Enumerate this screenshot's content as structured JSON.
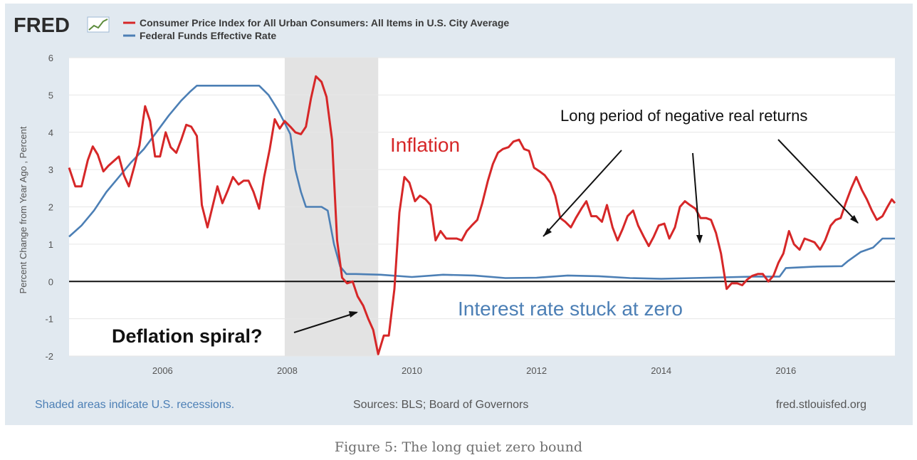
{
  "logo": {
    "text": "FRED"
  },
  "legend": [
    {
      "name": "Consumer Price Index for All Urban Consumers: All Items in U.S. City Average",
      "color": "#d62728"
    },
    {
      "name": "Federal Funds Effective Rate",
      "color": "#4c7fb5"
    }
  ],
  "footer": {
    "recession_note": "Shaded areas indicate U.S. recessions.",
    "sources": "Sources: BLS; Board of Governors",
    "site": "fred.stlouisfed.org"
  },
  "caption": "Figure 5: The long quiet zero bound",
  "annotations": {
    "inflation": "Inflation",
    "negative_returns": "Long period of negative real returns",
    "deflation": "Deflation spiral?",
    "interest": "Interest rate stuck at zero"
  },
  "colors": {
    "cpi": "#d62728",
    "fedfunds": "#4c7fb5",
    "recession": "#e3e3e3",
    "panel": "#e1e9f0",
    "footer_link": "#4c7fb5"
  },
  "chart_data": {
    "type": "line",
    "ylabel": "Percent Change from Year Ago , Percent",
    "xlim": [
      2004.5,
      2017.75
    ],
    "ylim": [
      -2,
      6
    ],
    "y_ticks": [
      -2,
      -1,
      0,
      1,
      2,
      3,
      4,
      5,
      6
    ],
    "x_ticks": [
      2006,
      2008,
      2010,
      2012,
      2014,
      2016
    ],
    "grid": true,
    "legend_position": "top-left",
    "recession": {
      "start": 2007.96,
      "end": 2009.46
    },
    "zero_line": 0,
    "series": [
      {
        "name": "Consumer Price Index for All Urban Consumers: All Items in U.S. City Average",
        "points": [
          [
            2004.5,
            3.05
          ],
          [
            2004.6,
            2.55
          ],
          [
            2004.7,
            2.55
          ],
          [
            2004.8,
            3.25
          ],
          [
            2004.88,
            3.62
          ],
          [
            2004.96,
            3.4
          ],
          [
            2005.05,
            2.95
          ],
          [
            2005.13,
            3.1
          ],
          [
            2005.3,
            3.35
          ],
          [
            2005.38,
            2.85
          ],
          [
            2005.46,
            2.55
          ],
          [
            2005.55,
            3.1
          ],
          [
            2005.63,
            3.65
          ],
          [
            2005.72,
            4.7
          ],
          [
            2005.8,
            4.3
          ],
          [
            2005.88,
            3.35
          ],
          [
            2005.96,
            3.35
          ],
          [
            2006.05,
            4.0
          ],
          [
            2006.13,
            3.6
          ],
          [
            2006.22,
            3.45
          ],
          [
            2006.3,
            3.8
          ],
          [
            2006.38,
            4.2
          ],
          [
            2006.46,
            4.15
          ],
          [
            2006.55,
            3.9
          ],
          [
            2006.63,
            2.05
          ],
          [
            2006.72,
            1.45
          ],
          [
            2006.8,
            2.0
          ],
          [
            2006.88,
            2.55
          ],
          [
            2006.96,
            2.1
          ],
          [
            2007.05,
            2.45
          ],
          [
            2007.13,
            2.8
          ],
          [
            2007.22,
            2.6
          ],
          [
            2007.3,
            2.7
          ],
          [
            2007.38,
            2.7
          ],
          [
            2007.46,
            2.4
          ],
          [
            2007.55,
            1.95
          ],
          [
            2007.63,
            2.8
          ],
          [
            2007.72,
            3.55
          ],
          [
            2007.8,
            4.35
          ],
          [
            2007.88,
            4.1
          ],
          [
            2007.96,
            4.3
          ],
          [
            2008.05,
            4.15
          ],
          [
            2008.13,
            4.0
          ],
          [
            2008.22,
            3.95
          ],
          [
            2008.3,
            4.15
          ],
          [
            2008.38,
            4.9
          ],
          [
            2008.46,
            5.5
          ],
          [
            2008.55,
            5.35
          ],
          [
            2008.63,
            4.95
          ],
          [
            2008.72,
            3.8
          ],
          [
            2008.8,
            1.1
          ],
          [
            2008.88,
            0.1
          ],
          [
            2008.96,
            -0.05
          ],
          [
            2009.05,
            0.0
          ],
          [
            2009.13,
            -0.4
          ],
          [
            2009.22,
            -0.65
          ],
          [
            2009.3,
            -1.0
          ],
          [
            2009.38,
            -1.3
          ],
          [
            2009.46,
            -1.95
          ],
          [
            2009.55,
            -1.45
          ],
          [
            2009.63,
            -1.45
          ],
          [
            2009.72,
            -0.2
          ],
          [
            2009.8,
            1.85
          ],
          [
            2009.88,
            2.8
          ],
          [
            2009.96,
            2.65
          ],
          [
            2010.05,
            2.15
          ],
          [
            2010.13,
            2.3
          ],
          [
            2010.22,
            2.2
          ],
          [
            2010.3,
            2.05
          ],
          [
            2010.38,
            1.1
          ],
          [
            2010.46,
            1.35
          ],
          [
            2010.55,
            1.15
          ],
          [
            2010.63,
            1.15
          ],
          [
            2010.72,
            1.15
          ],
          [
            2010.8,
            1.1
          ],
          [
            2010.88,
            1.35
          ],
          [
            2010.96,
            1.5
          ],
          [
            2011.05,
            1.65
          ],
          [
            2011.13,
            2.1
          ],
          [
            2011.22,
            2.7
          ],
          [
            2011.3,
            3.15
          ],
          [
            2011.38,
            3.45
          ],
          [
            2011.46,
            3.55
          ],
          [
            2011.55,
            3.6
          ],
          [
            2011.63,
            3.75
          ],
          [
            2011.72,
            3.8
          ],
          [
            2011.8,
            3.55
          ],
          [
            2011.88,
            3.5
          ],
          [
            2011.96,
            3.05
          ],
          [
            2012.05,
            2.95
          ],
          [
            2012.13,
            2.85
          ],
          [
            2012.22,
            2.65
          ],
          [
            2012.3,
            2.3
          ],
          [
            2012.38,
            1.7
          ],
          [
            2012.46,
            1.6
          ],
          [
            2012.55,
            1.45
          ],
          [
            2012.63,
            1.7
          ],
          [
            2012.72,
            1.95
          ],
          [
            2012.8,
            2.15
          ],
          [
            2012.88,
            1.75
          ],
          [
            2012.96,
            1.75
          ],
          [
            2013.05,
            1.6
          ],
          [
            2013.13,
            2.05
          ],
          [
            2013.22,
            1.45
          ],
          [
            2013.3,
            1.1
          ],
          [
            2013.38,
            1.4
          ],
          [
            2013.46,
            1.75
          ],
          [
            2013.55,
            1.9
          ],
          [
            2013.63,
            1.5
          ],
          [
            2013.72,
            1.2
          ],
          [
            2013.8,
            0.95
          ],
          [
            2013.88,
            1.2
          ],
          [
            2013.96,
            1.5
          ],
          [
            2014.05,
            1.55
          ],
          [
            2014.13,
            1.15
          ],
          [
            2014.22,
            1.45
          ],
          [
            2014.3,
            2.0
          ],
          [
            2014.38,
            2.15
          ],
          [
            2014.46,
            2.05
          ],
          [
            2014.55,
            1.95
          ],
          [
            2014.63,
            1.7
          ],
          [
            2014.72,
            1.7
          ],
          [
            2014.8,
            1.65
          ],
          [
            2014.88,
            1.3
          ],
          [
            2014.96,
            0.75
          ],
          [
            2015.05,
            -0.2
          ],
          [
            2015.13,
            -0.05
          ],
          [
            2015.22,
            -0.05
          ],
          [
            2015.3,
            -0.1
          ],
          [
            2015.38,
            0.05
          ],
          [
            2015.46,
            0.15
          ],
          [
            2015.55,
            0.2
          ],
          [
            2015.63,
            0.2
          ],
          [
            2015.72,
            0.0
          ],
          [
            2015.8,
            0.15
          ],
          [
            2015.88,
            0.5
          ],
          [
            2015.96,
            0.75
          ],
          [
            2016.05,
            1.35
          ],
          [
            2016.13,
            1.0
          ],
          [
            2016.22,
            0.85
          ],
          [
            2016.3,
            1.15
          ],
          [
            2016.38,
            1.1
          ],
          [
            2016.46,
            1.05
          ],
          [
            2016.55,
            0.85
          ],
          [
            2016.63,
            1.1
          ],
          [
            2016.72,
            1.5
          ],
          [
            2016.8,
            1.65
          ],
          [
            2016.88,
            1.7
          ],
          [
            2016.96,
            2.1
          ],
          [
            2017.05,
            2.5
          ],
          [
            2017.13,
            2.8
          ],
          [
            2017.22,
            2.45
          ],
          [
            2017.3,
            2.2
          ],
          [
            2017.38,
            1.9
          ],
          [
            2017.46,
            1.65
          ],
          [
            2017.55,
            1.75
          ],
          [
            2017.63,
            2.0
          ],
          [
            2017.7,
            2.2
          ],
          [
            2017.75,
            2.1
          ]
        ]
      },
      {
        "name": "Federal Funds Effective Rate",
        "points": [
          [
            2004.5,
            1.2
          ],
          [
            2004.7,
            1.5
          ],
          [
            2004.9,
            1.9
          ],
          [
            2005.1,
            2.4
          ],
          [
            2005.3,
            2.8
          ],
          [
            2005.5,
            3.2
          ],
          [
            2005.7,
            3.55
          ],
          [
            2005.9,
            4.0
          ],
          [
            2006.1,
            4.45
          ],
          [
            2006.3,
            4.85
          ],
          [
            2006.45,
            5.1
          ],
          [
            2006.55,
            5.25
          ],
          [
            2006.8,
            5.25
          ],
          [
            2007.0,
            5.25
          ],
          [
            2007.3,
            5.25
          ],
          [
            2007.55,
            5.25
          ],
          [
            2007.7,
            5.0
          ],
          [
            2007.85,
            4.6
          ],
          [
            2007.96,
            4.25
          ],
          [
            2008.05,
            3.95
          ],
          [
            2008.13,
            3.0
          ],
          [
            2008.22,
            2.4
          ],
          [
            2008.3,
            2.0
          ],
          [
            2008.55,
            2.0
          ],
          [
            2008.65,
            1.9
          ],
          [
            2008.75,
            1.0
          ],
          [
            2008.85,
            0.4
          ],
          [
            2008.95,
            0.2
          ],
          [
            2009.1,
            0.2
          ],
          [
            2009.5,
            0.18
          ],
          [
            2010.0,
            0.12
          ],
          [
            2010.5,
            0.18
          ],
          [
            2011.0,
            0.16
          ],
          [
            2011.5,
            0.09
          ],
          [
            2012.0,
            0.1
          ],
          [
            2012.5,
            0.16
          ],
          [
            2013.0,
            0.14
          ],
          [
            2013.5,
            0.09
          ],
          [
            2014.0,
            0.07
          ],
          [
            2014.5,
            0.09
          ],
          [
            2015.0,
            0.11
          ],
          [
            2015.5,
            0.13
          ],
          [
            2015.9,
            0.13
          ],
          [
            2016.0,
            0.36
          ],
          [
            2016.5,
            0.4
          ],
          [
            2016.9,
            0.41
          ],
          [
            2017.0,
            0.55
          ],
          [
            2017.2,
            0.79
          ],
          [
            2017.4,
            0.91
          ],
          [
            2017.55,
            1.15
          ],
          [
            2017.75,
            1.15
          ]
        ]
      }
    ]
  }
}
